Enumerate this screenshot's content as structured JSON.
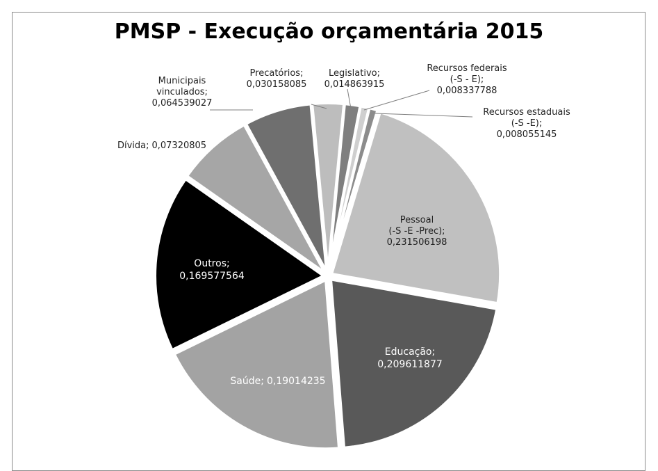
{
  "chart_data": {
    "type": "pie",
    "title": "PMSP - Execução orçamentária 2015",
    "categories": [
      "Precatórios;",
      "Legislativo;",
      "Recursos federais\n(-S - E);",
      "Recursos estaduais\n(-S -E);",
      "Pessoal\n(-S -E -Prec);",
      "Educação;",
      "Saúde;",
      "Outros;",
      "Dívida;",
      "Municipais\nvinculados;"
    ],
    "values": [
      0.030158085,
      0.014863915,
      0.008337788,
      0.008055145,
      0.231506198,
      0.209611877,
      0.19014235,
      0.169577564,
      0.07320805,
      0.064539027
    ],
    "value_labels": [
      "0,030158085",
      "0,014863915",
      "0,008337788",
      "0,008055145",
      "0,231506198",
      "0,209611877",
      "0,19014235",
      "0,169577564",
      "0,07320805",
      "0,064539027"
    ],
    "colors": [
      "#bdbdbd",
      "#7f7f7f",
      "#cfcfcf",
      "#8c8c8c",
      "#c0c0c0",
      "#595959",
      "#a3a3a3",
      "#000000",
      "#a6a6a6",
      "#6f6f6f"
    ]
  }
}
